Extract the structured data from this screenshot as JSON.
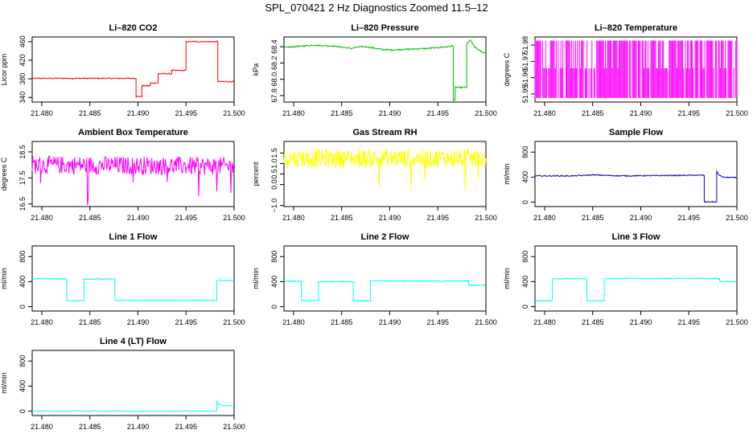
{
  "page_title": "SPL_070421  2 Hz Diagnostics Zoomed 11.5–12",
  "chart_data": [
    {
      "type": "line",
      "title": "Li–820 CO2",
      "ylabel": "Licor ppm",
      "xlim": [
        21.479,
        21.5
      ],
      "xticks": [
        "21.480",
        "21.485",
        "21.490",
        "21.495",
        "21.500"
      ],
      "ylim": [
        330,
        470
      ],
      "yticks": [
        "340",
        "380",
        "420",
        "460"
      ],
      "color": "#ff0000",
      "noise": 1.2,
      "series": [
        {
          "x": [
            21.479,
            21.4898,
            21.4898,
            21.4904,
            21.4904,
            21.4913,
            21.4913,
            21.4921,
            21.4921,
            21.4935,
            21.4935,
            21.495,
            21.495,
            21.4983,
            21.4983,
            21.5
          ],
          "y": [
            381,
            381,
            342,
            342,
            365,
            365,
            371,
            371,
            391,
            391,
            398,
            398,
            460,
            460,
            374,
            374
          ]
        }
      ]
    },
    {
      "type": "line",
      "title": "Li–820 Pressure",
      "ylabel": "kPa",
      "xlim": [
        21.479,
        21.5
      ],
      "xticks": [
        "21.480",
        "21.485",
        "21.490",
        "21.495",
        "21.500"
      ],
      "ylim": [
        67.72,
        68.52
      ],
      "yticks": [
        "67.8",
        "68.0",
        "68.2",
        "68.4"
      ],
      "color": "#00bb00",
      "noise": 0.008,
      "series": [
        {
          "x": [
            21.479,
            21.48,
            21.482,
            21.484,
            21.486,
            21.487,
            21.4875,
            21.489,
            21.49,
            21.492,
            21.494,
            21.496,
            21.4966,
            21.4966,
            21.4968,
            21.4968,
            21.498,
            21.498,
            21.4984,
            21.4988,
            21.4995,
            21.5
          ],
          "y": [
            68.39,
            68.4,
            68.42,
            68.41,
            68.38,
            68.4,
            68.4,
            68.37,
            68.36,
            68.37,
            68.38,
            68.4,
            68.41,
            67.74,
            67.74,
            67.9,
            67.9,
            68.44,
            68.48,
            68.4,
            68.34,
            68.32
          ]
        }
      ]
    },
    {
      "type": "line",
      "title": "Li–820 Temperature",
      "ylabel": "degrees C",
      "xlim": [
        21.479,
        21.5
      ],
      "xticks": [
        "21.480",
        "21.485",
        "21.490",
        "21.495",
        "21.500"
      ],
      "ylim": [
        51.945,
        51.985
      ],
      "yticks": [
        "51.95",
        "51.96",
        "51.97",
        "51.98"
      ],
      "color": "#ff00ff",
      "mode": "quantized",
      "levels": [
        51.9475,
        51.9828
      ],
      "series": [
        {
          "x": [
            21.479,
            21.5
          ],
          "y": [
            51.9475,
            51.9475
          ]
        }
      ]
    },
    {
      "type": "line",
      "title": "Ambient Box Temperature",
      "ylabel": "degrees C",
      "xlim": [
        21.479,
        21.5
      ],
      "xticks": [
        "21.480",
        "21.485",
        "21.490",
        "21.495",
        "21.500"
      ],
      "ylim": [
        16.4,
        18.9
      ],
      "yticks": [
        "16.5",
        "17.5",
        "18.5"
      ],
      "color": "#ff00ff",
      "noise": 0.35,
      "spikes": true,
      "series": [
        {
          "x": [
            21.479,
            21.5
          ],
          "y": [
            18.0,
            17.95
          ]
        }
      ]
    },
    {
      "type": "line",
      "title": "Gas Stream RH",
      "ylabel": "percent",
      "xlim": [
        21.479,
        21.5
      ],
      "xticks": [
        "21.480",
        "21.485",
        "21.490",
        "21.495",
        "21.500"
      ],
      "ylim": [
        -1.05,
        2.05
      ],
      "yticks": [
        "−1.0",
        "0.0",
        "0.5",
        "1.0",
        "1.5"
      ],
      "color": "#ffff00",
      "noise": 0.45,
      "spikes": true,
      "series": [
        {
          "x": [
            21.479,
            21.5
          ],
          "y": [
            1.25,
            1.25
          ]
        }
      ]
    },
    {
      "type": "line",
      "title": "Sample Flow",
      "ylabel": "ml/min",
      "xlim": [
        21.479,
        21.5
      ],
      "xticks": [
        "21.480",
        "21.485",
        "21.490",
        "21.495",
        "21.500"
      ],
      "ylim": [
        -70,
        970
      ],
      "yticks": [
        "0",
        "400",
        "800"
      ],
      "color": "#0000cc",
      "noise": 8,
      "series": [
        {
          "x": [
            21.479,
            21.483,
            21.485,
            21.488,
            21.496,
            21.4966,
            21.4966,
            21.4979,
            21.4979,
            21.4981,
            21.4985,
            21.5
          ],
          "y": [
            420,
            420,
            435,
            420,
            430,
            430,
            5,
            5,
            490,
            440,
            400,
            390
          ]
        }
      ]
    },
    {
      "type": "line",
      "title": "Line 1 Flow",
      "ylabel": "ml/min",
      "xlim": [
        21.479,
        21.5
      ],
      "xticks": [
        "21.480",
        "21.485",
        "21.490",
        "21.495",
        "21.500"
      ],
      "ylim": [
        -70,
        970
      ],
      "yticks": [
        "0",
        "400",
        "800"
      ],
      "color": "#00ffff",
      "noise": 8,
      "series": [
        {
          "x": [
            21.479,
            21.4826,
            21.4826,
            21.4844,
            21.4844,
            21.4876,
            21.4876,
            21.4982,
            21.4982,
            21.4984,
            21.5
          ],
          "y": [
            445,
            445,
            95,
            95,
            440,
            440,
            100,
            100,
            410,
            420,
            415
          ]
        }
      ]
    },
    {
      "type": "line",
      "title": "Line 2 Flow",
      "ylabel": "ml/min",
      "xlim": [
        21.479,
        21.5
      ],
      "xticks": [
        "21.480",
        "21.485",
        "21.490",
        "21.495",
        "21.500"
      ],
      "ylim": [
        -70,
        970
      ],
      "yticks": [
        "0",
        "400",
        "800"
      ],
      "color": "#00ffff",
      "noise": 8,
      "series": [
        {
          "x": [
            21.479,
            21.4808,
            21.4808,
            21.4826,
            21.4826,
            21.4862,
            21.4862,
            21.488,
            21.488,
            21.4982,
            21.4982,
            21.5
          ],
          "y": [
            405,
            405,
            95,
            95,
            400,
            400,
            95,
            95,
            410,
            410,
            345,
            345
          ]
        }
      ]
    },
    {
      "type": "line",
      "title": "Line 3 Flow",
      "ylabel": "ml/min",
      "xlim": [
        21.479,
        21.5
      ],
      "xticks": [
        "21.480",
        "21.485",
        "21.490",
        "21.495",
        "21.500"
      ],
      "ylim": [
        -70,
        970
      ],
      "yticks": [
        "0",
        "400",
        "800"
      ],
      "color": "#00ffff",
      "noise": 8,
      "series": [
        {
          "x": [
            21.479,
            21.4808,
            21.4808,
            21.4844,
            21.4844,
            21.4862,
            21.4862,
            21.4982,
            21.4982,
            21.5
          ],
          "y": [
            95,
            95,
            445,
            445,
            95,
            95,
            450,
            450,
            400,
            400
          ]
        }
      ]
    },
    {
      "type": "line",
      "title": "Line 4 (LT) Flow",
      "ylabel": "ml/min",
      "xlim": [
        21.479,
        21.5
      ],
      "xticks": [
        "21.480",
        "21.485",
        "21.490",
        "21.495",
        "21.500"
      ],
      "ylim": [
        -70,
        970
      ],
      "yticks": [
        "0",
        "400",
        "800"
      ],
      "color": "#00ffff",
      "noise": 3,
      "series": [
        {
          "x": [
            21.479,
            21.4982,
            21.4982,
            21.4984,
            21.4988,
            21.5
          ],
          "y": [
            0,
            0,
            160,
            110,
            90,
            85
          ]
        }
      ]
    }
  ]
}
